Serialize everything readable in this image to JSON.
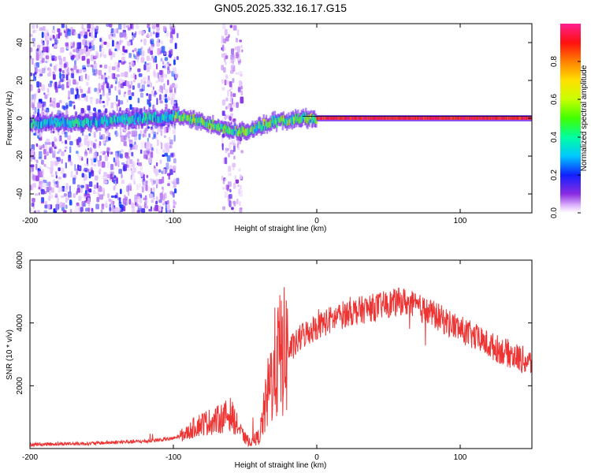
{
  "title": "GN05.2025.332.16.17.G15",
  "chart_data": [
    {
      "type": "heatmap",
      "title": "GN05.2025.332.16.17.G15",
      "xlabel": "Height of straight line (km)",
      "ylabel": "Frequency (Hz)",
      "xlim": [
        -200,
        150
      ],
      "ylim": [
        -50,
        50
      ],
      "xticks": [
        -200,
        -100,
        0,
        100
      ],
      "yticks": [
        -40,
        -20,
        0,
        20,
        40
      ],
      "colorbar": {
        "label": "Normalized spectral amplitude",
        "range": [
          0,
          1
        ],
        "ticks": [
          "0.0",
          "0.2",
          "0.4",
          "0.6",
          "0.8"
        ]
      },
      "ridge": {
        "x": [
          -200,
          -180,
          -160,
          -140,
          -120,
          -100,
          -90,
          -80,
          -70,
          -60,
          -55,
          -50,
          -45,
          -40,
          -35,
          -30,
          -20,
          -10,
          0,
          20,
          60,
          100,
          150
        ],
        "freq": [
          -3,
          -2,
          -2,
          -1,
          0,
          1,
          0,
          -2,
          -4,
          -6,
          -7,
          -7,
          -6,
          -5,
          -3,
          -2,
          -1,
          0,
          0,
          0,
          0,
          0,
          0
        ]
      }
    },
    {
      "type": "line",
      "xlabel": "Height of straight line (km)",
      "ylabel": "SNR (10 * v/v)",
      "xlim": [
        -200,
        150
      ],
      "ylim": [
        0,
        6000
      ],
      "xticks": [
        -200,
        -100,
        0,
        100
      ],
      "yticks": [
        2000,
        4000,
        6000
      ],
      "series": [
        {
          "name": "SNR",
          "color": "#ee3333",
          "x": [
            -200,
            -180,
            -160,
            -140,
            -120,
            -100,
            -90,
            -85,
            -80,
            -70,
            -65,
            -60,
            -55,
            -50,
            -45,
            -40,
            -35,
            -30,
            -25,
            -20,
            -15,
            -10,
            0,
            20,
            40,
            60,
            80,
            100,
            120,
            140,
            150
          ],
          "values": [
            130,
            150,
            160,
            200,
            230,
            320,
            500,
            700,
            800,
            900,
            1000,
            1100,
            700,
            300,
            200,
            400,
            1500,
            2600,
            3000,
            3100,
            3300,
            3600,
            3900,
            4300,
            4500,
            4700,
            4300,
            3800,
            3300,
            2900,
            2700
          ]
        }
      ]
    }
  ]
}
